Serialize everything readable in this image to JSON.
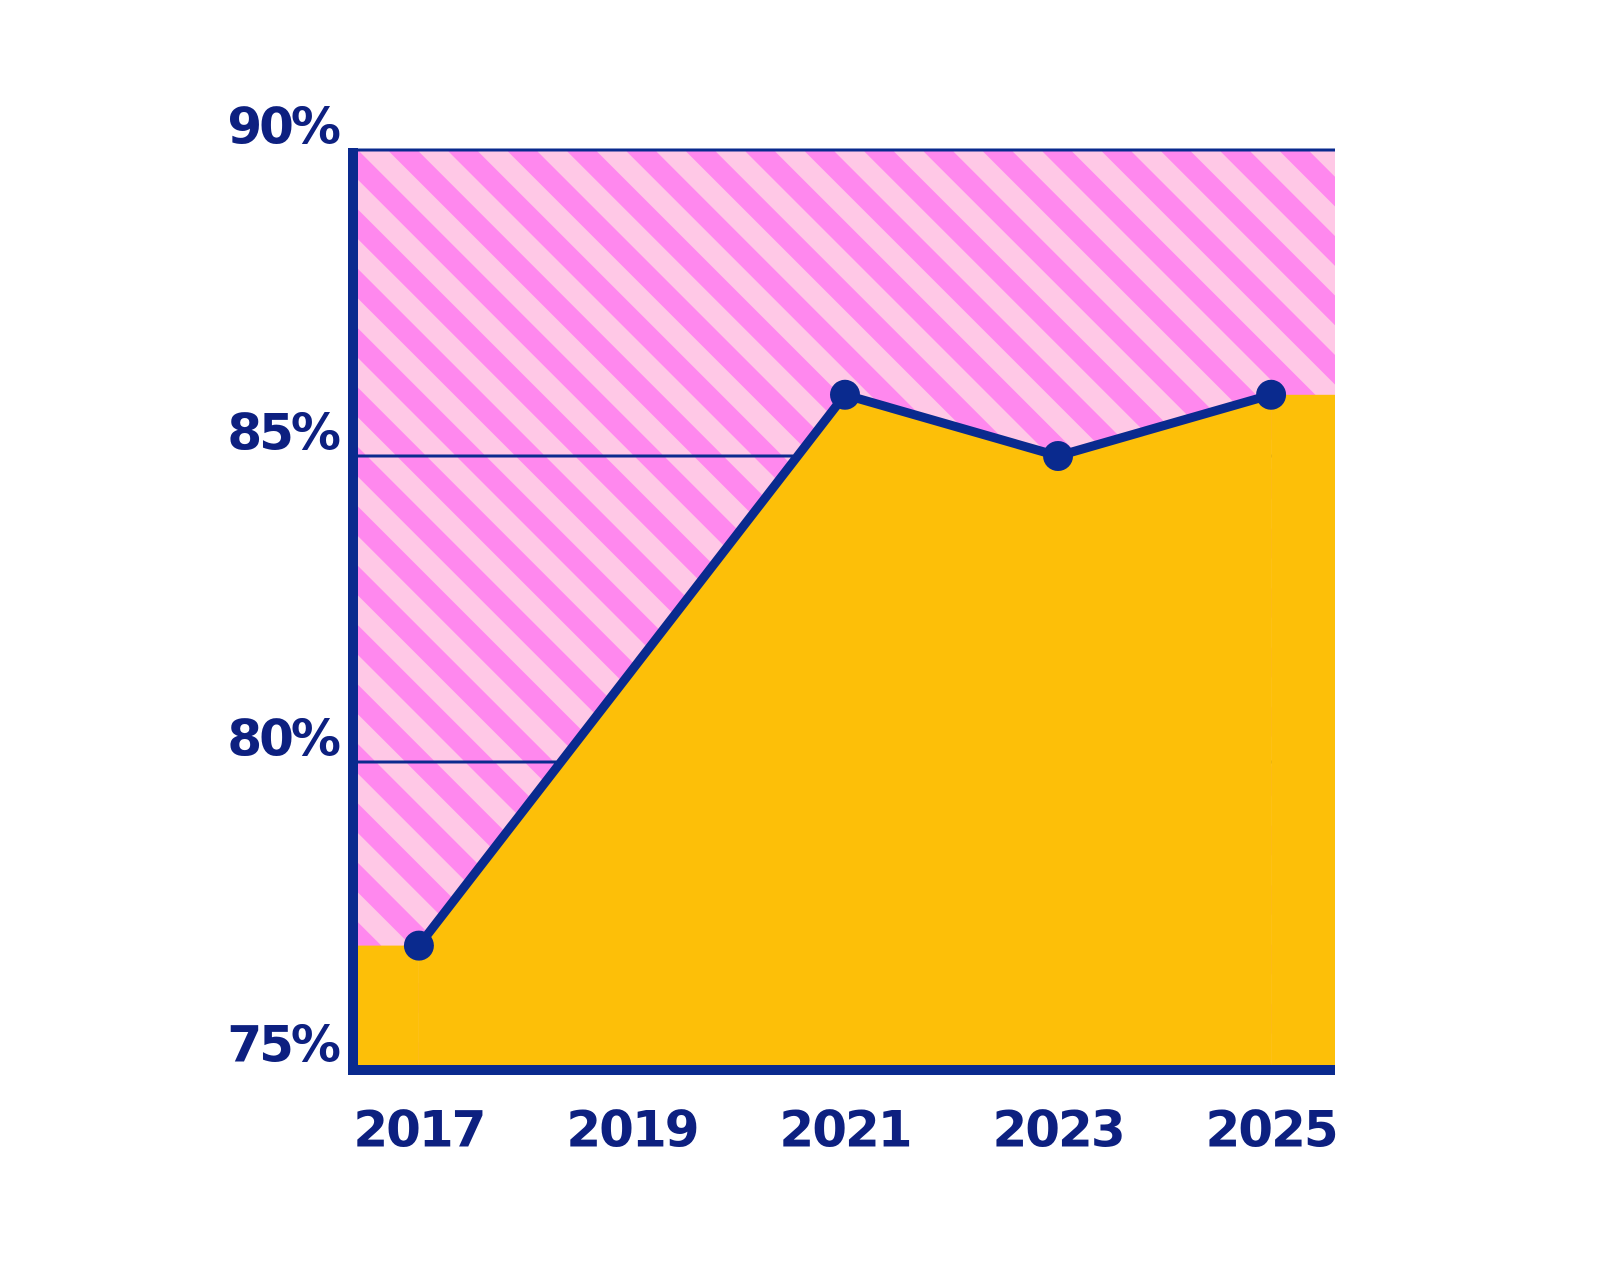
{
  "chart_data": {
    "type": "area",
    "x": [
      2017,
      2021,
      2023,
      2025
    ],
    "values": [
      77,
      86,
      85,
      86
    ],
    "color": "#fdbf08",
    "line_color": "#0a2a8e",
    "xlim": [
      2016.4,
      2025.6
    ],
    "xticks": [
      2017,
      2019,
      2021,
      2023,
      2025
    ],
    "ylim": [
      75,
      90
    ],
    "yticks": [
      {
        "value": 75,
        "label": "75%"
      },
      {
        "value": 80,
        "label": "80%"
      },
      {
        "value": 85,
        "label": "85%"
      },
      {
        "value": 90,
        "label": "90%"
      }
    ],
    "grid": true
  }
}
